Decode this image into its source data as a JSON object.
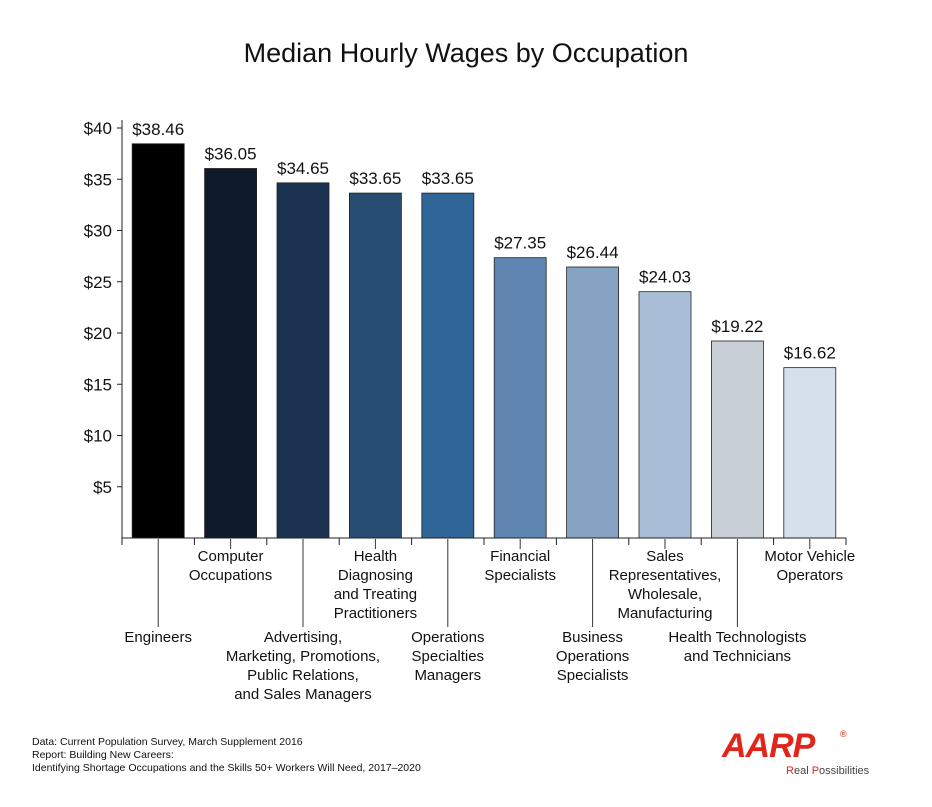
{
  "chart_data": {
    "type": "bar",
    "title": "Median Hourly Wages by Occupation",
    "ylim": [
      0,
      40
    ],
    "yticks": [
      "$5",
      "$10",
      "$15",
      "$20",
      "$25",
      "$30",
      "$35",
      "$40"
    ],
    "grid": false,
    "categories": [
      "Engineers",
      "Computer Occupations",
      "Advertising, Marketing, Promotions, Public Relations, and Sales Managers",
      "Health Diagnosing and Treating Practitioners",
      "Operations Specialties Managers",
      "Financial Specialists",
      "Business Operations Specialists",
      "Sales Representatives, Wholesale, Manufacturing",
      "Health Technologists and Technicians",
      "Motor Vehicle Operators"
    ],
    "values": [
      38.46,
      36.05,
      34.65,
      33.65,
      33.65,
      27.35,
      26.44,
      24.03,
      19.22,
      16.62
    ],
    "value_labels": [
      "$38.46",
      "$36.05",
      "$34.65",
      "$33.65",
      "$33.65",
      "$27.35",
      "$26.44",
      "$24.03",
      "$19.22",
      "$16.62"
    ],
    "category_lines": [
      [
        "Engineers"
      ],
      [
        "Computer",
        "Occupations"
      ],
      [
        "Advertising,",
        "Marketing, Promotions,",
        "Public Relations,",
        "and Sales Managers"
      ],
      [
        "Health",
        "Diagnosing",
        "and Treating",
        "Practitioners"
      ],
      [
        "Operations",
        "Specialties",
        "Managers"
      ],
      [
        "Financial",
        "Specialists"
      ],
      [
        "Business",
        "Operations",
        "Specialists"
      ],
      [
        "Sales",
        "Representatives,",
        "Wholesale,",
        "Manufacturing"
      ],
      [
        "Health Technologists",
        "and Technicians"
      ],
      [
        "Motor Vehicle",
        "Operators"
      ]
    ],
    "label_levels": [
      "low",
      "high",
      "low",
      "high",
      "low",
      "high",
      "low",
      "high",
      "low",
      "high"
    ],
    "colors": [
      "#000000",
      "#0f1b2a",
      "#1b3350",
      "#274d73",
      "#2f6597",
      "#5f86b1",
      "#86a3c3",
      "#a9bed6",
      "#c9cfd7",
      "#d5e0ec"
    ]
  },
  "footer": {
    "line1": "Data: Current Population Survey, March Supplement 2016",
    "line2": "Report: Building New Careers:",
    "line3": "Identifying Shortage Occupations and the Skills 50+ Workers Will Need, 2017–2020"
  },
  "logo": {
    "wordmark": "AARP",
    "registered": "®",
    "tagline_r": "R",
    "tagline_1": "eal ",
    "tagline_p": "P",
    "tagline_2": "ossibilities"
  }
}
